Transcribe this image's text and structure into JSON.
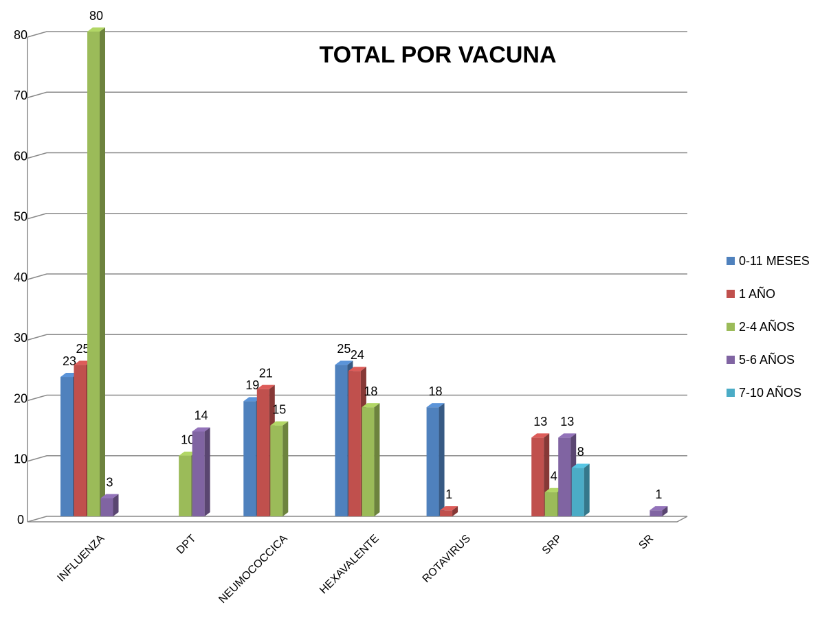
{
  "chart_data": {
    "type": "bar3d",
    "title": "TOTAL POR VACUNA",
    "categories": [
      "INFLUENZA",
      "DPT",
      "NEUMOCOCCICA",
      "HEXAVALENTE",
      "ROTAVIRUS",
      "SRP",
      "SR"
    ],
    "series": [
      {
        "name": "0-11 MESES",
        "color": "#4f81bd",
        "values": [
          23,
          null,
          19,
          25,
          18,
          null,
          null
        ]
      },
      {
        "name": "1 AÑO",
        "color": "#c0504d",
        "values": [
          25,
          null,
          21,
          24,
          1,
          13,
          null
        ]
      },
      {
        "name": "2-4 AÑOS",
        "color": "#9bbb59",
        "values": [
          80,
          10,
          15,
          18,
          null,
          4,
          null
        ]
      },
      {
        "name": "5-6 AÑOS",
        "color": "#8064a2",
        "values": [
          3,
          14,
          null,
          null,
          null,
          13,
          1
        ]
      },
      {
        "name": "7-10 AÑOS",
        "color": "#4bacc6",
        "values": [
          null,
          null,
          null,
          null,
          null,
          8,
          null
        ]
      }
    ],
    "ylim": [
      0,
      80
    ],
    "yticks": [
      0,
      10,
      20,
      30,
      40,
      50,
      60,
      70,
      80
    ],
    "grid": true,
    "legend": "right"
  }
}
